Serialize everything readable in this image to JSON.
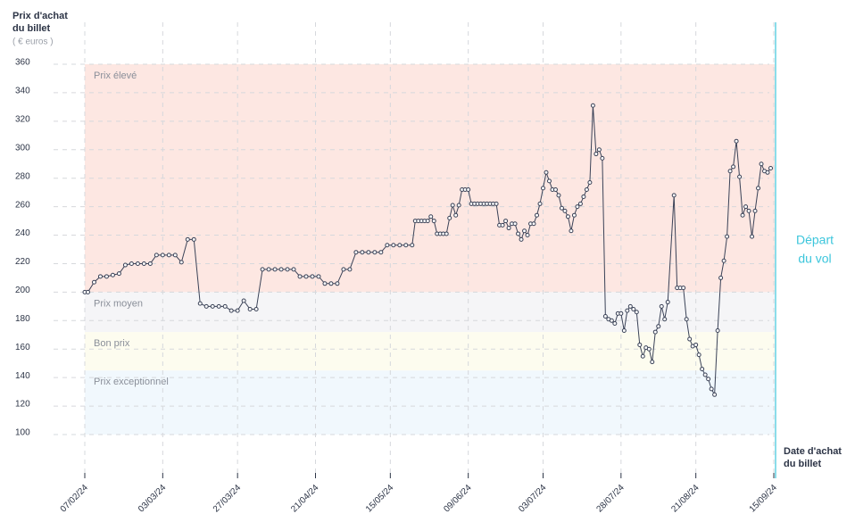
{
  "chart_data": {
    "type": "line",
    "y_title": [
      "Prix d'achat",
      "du billet"
    ],
    "y_unit": "( € euros )",
    "x_title": [
      "Date d'achat",
      "du billet"
    ],
    "departure_label": [
      "Départ",
      "du vol"
    ],
    "departure_date": "15/09/24",
    "xlim": [
      "07/02/24",
      "15/09/24"
    ],
    "xticks": [
      "07/02/24",
      "03/03/24",
      "27/03/24",
      "21/04/24",
      "15/05/24",
      "09/06/24",
      "03/07/24",
      "28/07/24",
      "21/08/24",
      "15/09/24"
    ],
    "ylim": [
      100,
      360
    ],
    "yticks": [
      100,
      120,
      140,
      160,
      180,
      200,
      220,
      240,
      260,
      280,
      300,
      320,
      340,
      360
    ],
    "grid": true,
    "bands": [
      {
        "label": "Prix élevé",
        "from": 200,
        "to": 360,
        "color": "#fde7e2"
      },
      {
        "label": "Prix moyen",
        "from": 172,
        "to": 200,
        "color": "#f5f5f7"
      },
      {
        "label": "Bon prix",
        "from": 145,
        "to": 172,
        "color": "#fdfcef"
      },
      {
        "label": "Prix exceptionnel",
        "from": 100,
        "to": 145,
        "color": "#f1f8fd"
      }
    ],
    "x": [
      "07/02/24",
      "08/02/24",
      "10/02/24",
      "12/02/24",
      "14/02/24",
      "16/02/24",
      "18/02/24",
      "20/02/24",
      "22/02/24",
      "24/02/24",
      "26/02/24",
      "28/02/24",
      "01/03/24",
      "03/03/24",
      "05/03/24",
      "07/03/24",
      "09/03/24",
      "11/03/24",
      "13/03/24",
      "15/03/24",
      "17/03/24",
      "19/03/24",
      "21/03/24",
      "23/03/24",
      "25/03/24",
      "27/03/24",
      "29/03/24",
      "31/03/24",
      "02/04/24",
      "04/04/24",
      "06/04/24",
      "08/04/24",
      "10/04/24",
      "12/04/24",
      "14/04/24",
      "16/04/24",
      "18/04/24",
      "20/04/24",
      "22/04/24",
      "24/04/24",
      "26/04/24",
      "28/04/24",
      "30/04/24",
      "02/05/24",
      "04/05/24",
      "06/05/24",
      "08/05/24",
      "10/05/24",
      "12/05/24",
      "14/05/24",
      "16/05/24",
      "18/05/24",
      "20/05/24",
      "22/05/24",
      "23/05/24",
      "24/05/24",
      "25/05/24",
      "26/05/24",
      "27/05/24",
      "28/05/24",
      "29/05/24",
      "30/05/24",
      "31/05/24",
      "01/06/24",
      "02/06/24",
      "03/06/24",
      "04/06/24",
      "05/06/24",
      "06/06/24",
      "07/06/24",
      "08/06/24",
      "09/06/24",
      "10/06/24",
      "11/06/24",
      "12/06/24",
      "13/06/24",
      "14/06/24",
      "15/06/24",
      "16/06/24",
      "17/06/24",
      "18/06/24",
      "19/06/24",
      "20/06/24",
      "21/06/24",
      "22/06/24",
      "23/06/24",
      "24/06/24",
      "25/06/24",
      "26/06/24",
      "27/06/24",
      "28/06/24",
      "29/06/24",
      "30/06/24",
      "01/07/24",
      "02/07/24",
      "03/07/24",
      "04/07/24",
      "05/07/24",
      "06/07/24",
      "07/07/24",
      "08/07/24",
      "09/07/24",
      "10/07/24",
      "11/07/24",
      "12/07/24",
      "13/07/24",
      "14/07/24",
      "15/07/24",
      "16/07/24",
      "17/07/24",
      "18/07/24",
      "19/07/24",
      "20/07/24",
      "21/07/24",
      "22/07/24",
      "23/07/24",
      "24/07/24",
      "25/07/24",
      "26/07/24",
      "27/07/24",
      "28/07/24",
      "29/07/24",
      "30/07/24",
      "31/07/24",
      "01/08/24",
      "02/08/24",
      "03/08/24",
      "04/08/24",
      "05/08/24",
      "06/08/24",
      "07/08/24",
      "08/08/24",
      "09/08/24",
      "10/08/24",
      "11/08/24",
      "12/08/24",
      "14/08/24",
      "15/08/24",
      "16/08/24",
      "17/08/24",
      "18/08/24",
      "19/08/24",
      "20/08/24",
      "21/08/24",
      "22/08/24",
      "23/08/24",
      "24/08/24",
      "25/08/24",
      "26/08/24",
      "27/08/24",
      "28/08/24",
      "29/08/24",
      "30/08/24",
      "31/08/24",
      "01/09/24",
      "02/09/24",
      "03/09/24",
      "04/09/24",
      "05/09/24",
      "06/09/24",
      "07/09/24",
      "08/09/24",
      "09/09/24",
      "10/09/24",
      "11/09/24",
      "12/09/24",
      "13/09/24",
      "14/09/24"
    ],
    "series": [
      {
        "name": "Prix",
        "color": "#3a4257",
        "values": [
          200,
          200,
          207,
          211,
          211,
          212,
          213,
          219,
          220,
          220,
          220,
          220,
          226,
          226,
          226,
          226,
          221,
          237,
          237,
          192,
          190,
          190,
          190,
          190,
          187,
          187,
          194,
          188,
          188,
          216,
          216,
          216,
          216,
          216,
          216,
          211,
          211,
          211,
          211,
          206,
          206,
          206,
          216,
          216,
          228,
          228,
          228,
          228,
          228,
          233,
          233,
          233,
          233,
          233,
          250,
          250,
          250,
          250,
          250,
          253,
          250,
          241,
          241,
          241,
          241,
          252,
          261,
          254,
          261,
          272,
          272,
          272,
          262,
          262,
          262,
          262,
          262,
          262,
          262,
          262,
          262,
          247,
          247,
          250,
          245,
          248,
          248,
          241,
          237,
          243,
          240,
          248,
          248,
          254,
          262,
          273,
          284,
          278,
          272,
          272,
          268,
          259,
          257,
          253,
          243,
          254,
          260,
          262,
          267,
          272,
          277,
          331,
          297,
          300,
          294,
          183,
          181,
          180,
          178,
          185,
          185,
          173,
          187,
          190,
          188,
          186,
          163,
          155,
          161,
          160,
          151,
          172,
          176,
          190,
          181,
          193,
          268,
          203,
          203,
          203,
          181,
          167,
          162,
          163,
          156,
          146,
          142,
          139,
          132,
          128,
          173,
          210,
          222,
          239,
          285,
          288,
          306,
          281,
          254,
          260,
          257,
          239,
          257,
          273,
          290,
          285,
          284,
          287
        ]
      }
    ]
  }
}
